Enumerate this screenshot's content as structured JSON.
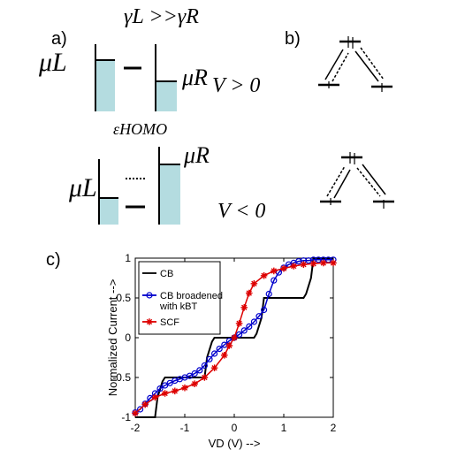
{
  "panels": {
    "a": {
      "label": "a)",
      "top_case": {
        "coupling": "γL >>γR",
        "mu_left": "μL",
        "mu_right": "μR",
        "voltage": "V > 0",
        "level_label": "εHOMO"
      },
      "bottom_case": {
        "mu_left": "μL",
        "mu_right": "μR",
        "voltage": "V < 0"
      }
    },
    "b": {
      "label": "b)"
    },
    "c": {
      "label": "c)"
    }
  },
  "chart_data": {
    "type": "line",
    "xlabel": "VD (V) -->",
    "ylabel": "Normalized Current -->",
    "xlim": [
      -2,
      2
    ],
    "ylim": [
      -1,
      1
    ],
    "xticks": [
      -2,
      -1,
      0,
      1,
      2
    ],
    "yticks": [
      -1,
      -0.5,
      0,
      0.5,
      1
    ],
    "legend_position": "top-left",
    "series": [
      {
        "name": "CB",
        "color": "#000000",
        "marker": "none",
        "x": [
          -2,
          -1.6,
          -1.55,
          -1.45,
          -1.4,
          -0.6,
          -0.55,
          -0.45,
          -0.4,
          0.4,
          0.45,
          0.55,
          0.6,
          1.4,
          1.45,
          1.55,
          1.6,
          2
        ],
        "y": [
          -1,
          -1,
          -0.75,
          -0.55,
          -0.5,
          -0.5,
          -0.25,
          -0.05,
          0,
          0,
          0.05,
          0.25,
          0.5,
          0.5,
          0.55,
          0.75,
          1,
          1
        ]
      },
      {
        "name": "CB broadened with kBT",
        "color": "#0000cc",
        "marker": "circle",
        "x": [
          -2,
          -1.9,
          -1.8,
          -1.7,
          -1.6,
          -1.5,
          -1.4,
          -1.3,
          -1.2,
          -1.1,
          -1,
          -0.9,
          -0.8,
          -0.7,
          -0.6,
          -0.5,
          -0.4,
          -0.3,
          -0.2,
          -0.1,
          0,
          0.1,
          0.2,
          0.3,
          0.4,
          0.5,
          0.6,
          0.7,
          0.8,
          0.9,
          1,
          1.1,
          1.2,
          1.3,
          1.4,
          1.5,
          1.6,
          1.7,
          1.8,
          1.9,
          2
        ],
        "y": [
          -0.94,
          -0.9,
          -0.83,
          -0.76,
          -0.7,
          -0.64,
          -0.6,
          -0.57,
          -0.54,
          -0.52,
          -0.5,
          -0.48,
          -0.45,
          -0.41,
          -0.35,
          -0.27,
          -0.2,
          -0.14,
          -0.09,
          -0.04,
          0,
          0.04,
          0.09,
          0.14,
          0.2,
          0.27,
          0.35,
          0.55,
          0.72,
          0.82,
          0.88,
          0.92,
          0.94,
          0.96,
          0.97,
          0.97,
          0.98,
          0.98,
          0.98,
          0.98,
          0.98
        ]
      },
      {
        "name": "SCF",
        "color": "#dd0000",
        "marker": "star",
        "x": [
          -2,
          -1.8,
          -1.6,
          -1.4,
          -1.2,
          -1,
          -0.8,
          -0.6,
          -0.4,
          -0.2,
          -0.1,
          0,
          0.1,
          0.2,
          0.3,
          0.4,
          0.6,
          0.8,
          1,
          1.2,
          1.4,
          1.6,
          1.8,
          2
        ],
        "y": [
          -0.95,
          -0.84,
          -0.75,
          -0.7,
          -0.67,
          -0.63,
          -0.58,
          -0.5,
          -0.38,
          -0.22,
          -0.1,
          0,
          0.18,
          0.38,
          0.56,
          0.68,
          0.78,
          0.84,
          0.87,
          0.9,
          0.92,
          0.93,
          0.94,
          0.94
        ]
      }
    ]
  }
}
